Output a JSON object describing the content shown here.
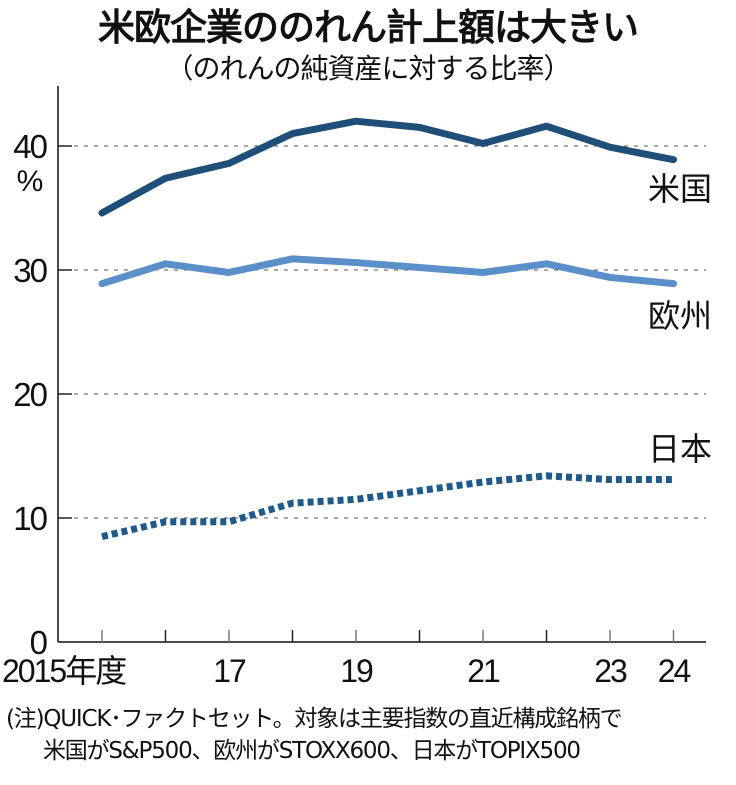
{
  "header": {
    "title": "米欧企業ののれん計上額は大きい",
    "subtitle": "（のれんの純資産に対する比率）"
  },
  "chart_data": {
    "type": "line",
    "title": "米欧企業ののれん計上額は大きい",
    "subtitle": "（のれんの純資産に対する比率）",
    "xlabel": "",
    "ylabel": "%",
    "x": [
      2015,
      2016,
      2017,
      2018,
      2019,
      2020,
      2021,
      2022,
      2023,
      2024
    ],
    "x_tick_labels": [
      {
        "x": 2015,
        "label": "2015年度"
      },
      {
        "x": 2017,
        "label": "17"
      },
      {
        "x": 2019,
        "label": "19"
      },
      {
        "x": 2021,
        "label": "21"
      },
      {
        "x": 2023,
        "label": "23"
      },
      {
        "x": 2024,
        "label": "24"
      }
    ],
    "y_ticks": [
      0,
      10,
      20,
      30,
      40
    ],
    "y_tick_labels": [
      "0",
      "10",
      "20",
      "30",
      "40"
    ],
    "y_unit_label": "%",
    "ylim": [
      0,
      45
    ],
    "xlim": [
      2014.3,
      2024.5
    ],
    "grid": true,
    "series": [
      {
        "name": "米国",
        "color": "#1f4e79",
        "style": "solid",
        "values": [
          34.6,
          37.4,
          38.6,
          41.0,
          42.0,
          41.5,
          40.2,
          41.6,
          39.9,
          38.9
        ]
      },
      {
        "name": "欧州",
        "color": "#5b8fc9",
        "style": "solid",
        "values": [
          28.9,
          30.5,
          29.8,
          30.9,
          30.6,
          30.2,
          29.8,
          30.5,
          29.4,
          28.9
        ]
      },
      {
        "name": "日本",
        "color": "#1f5a8a",
        "style": "dotted",
        "values": [
          8.5,
          9.7,
          9.7,
          11.2,
          11.5,
          12.2,
          12.9,
          13.4,
          13.1,
          13.1
        ]
      }
    ]
  },
  "footnote": {
    "line1": "(注)QUICK･ファクトセット。対象は主要指数の直近構成銘柄で",
    "line2": "米国がS&P500、欧州がSTOXX600、日本がTOPIX500"
  }
}
